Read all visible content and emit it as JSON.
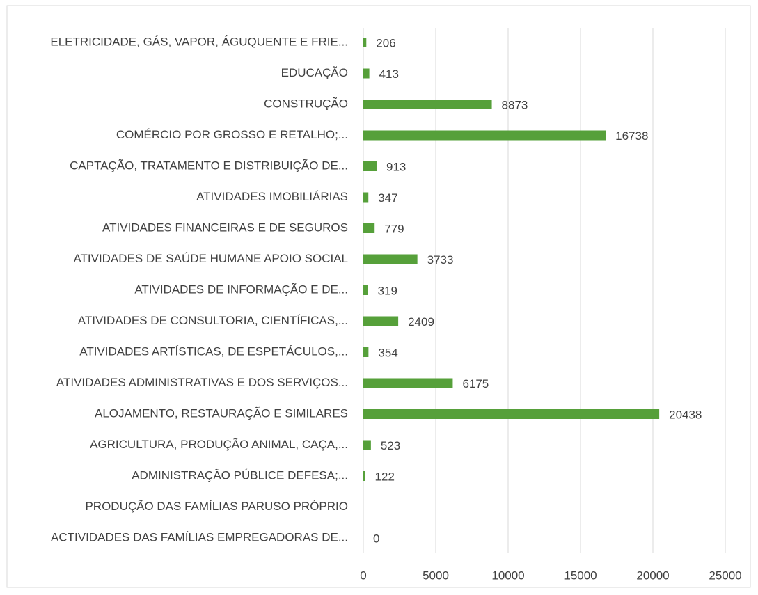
{
  "chart_data": {
    "type": "barh",
    "categories": [
      "ELETRICIDADE, GÁS, VAPOR, ÁGUQUENTE E FRIE...",
      "EDUCAÇÃO",
      "CONSTRUÇÃO",
      "COMÉRCIO POR GROSSO E RETALHO;...",
      "CAPTAÇÃO, TRATAMENTO E DISTRIBUIÇÃO DE...",
      "ATIVIDADES IMOBILIÁRIAS",
      "ATIVIDADES FINANCEIRAS E DE SEGUROS",
      "ATIVIDADES DE SAÚDE HUMANE APOIO SOCIAL",
      "ATIVIDADES DE INFORMAÇÃO E DE...",
      "ATIVIDADES DE CONSULTORIA, CIENTÍFICAS,...",
      "ATIVIDADES ARTÍSTICAS, DE ESPETÁCULOS,...",
      "ATIVIDADES ADMINISTRATIVAS E DOS SERVIÇOS...",
      "ALOJAMENTO, RESTAURAÇÃO E SIMILARES",
      "AGRICULTURA, PRODUÇÃO ANIMAL, CAÇA,...",
      "ADMINISTRAÇÃO PÚBLICE DEFESA;...",
      "PRODUÇÃO DAS FAMÍLIAS PARUSO PRÓPRIO",
      "ACTIVIDADES DAS FAMÍLIAS EMPREGADORAS DE..."
    ],
    "values": [
      206,
      413,
      8873,
      16738,
      913,
      347,
      779,
      3733,
      319,
      2409,
      354,
      6175,
      20438,
      523,
      122,
      null,
      0
    ],
    "color": "#56a03a",
    "xlim": [
      0,
      25000
    ],
    "xticks": [
      0,
      5000,
      10000,
      15000,
      20000,
      25000
    ],
    "grid": true
  }
}
